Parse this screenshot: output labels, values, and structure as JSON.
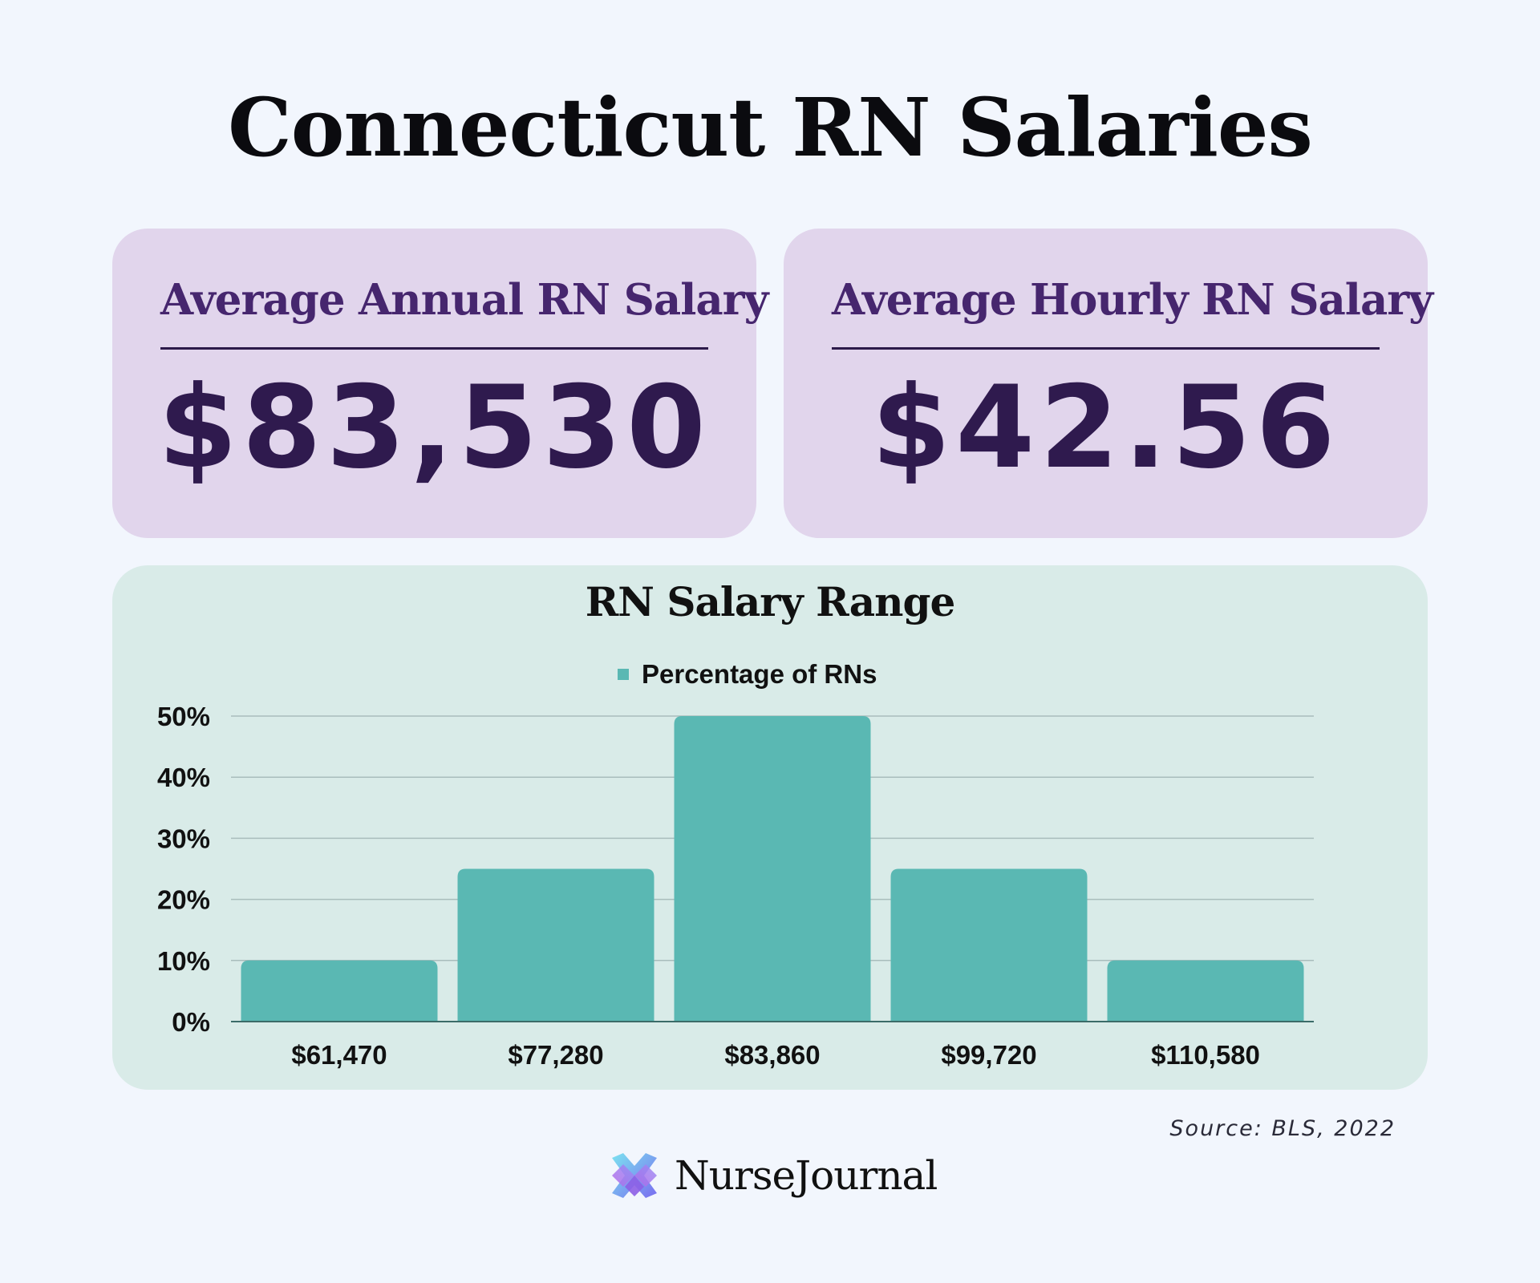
{
  "page": {
    "title": "Connecticut RN Salaries",
    "source": "Source: BLS, 2022",
    "brand_name": "NurseJournal"
  },
  "cards": {
    "annual": {
      "label": "Average Annual RN Salary",
      "value": "$83,530"
    },
    "hourly": {
      "label": "Average Hourly RN Salary",
      "value": "$42.56"
    }
  },
  "colors": {
    "background": "#f2f6fd",
    "card_purple": "#e1d5ec",
    "card_green": "#d9ebe8",
    "bar": "#5ab8b3",
    "text_purple": "#2f1a4e"
  },
  "icons": {
    "logo": "nursejournal-logo-icon"
  },
  "chart_data": {
    "type": "bar",
    "title": "RN Salary Range",
    "categories": [
      "$61,470",
      "$77,280",
      "$83,860",
      "$99,720",
      "$110,580"
    ],
    "series": [
      {
        "name": "Percentage of RNs",
        "values": [
          10,
          25,
          50,
          25,
          10
        ]
      }
    ],
    "y_ticks": [
      "0%",
      "10%",
      "20%",
      "30%",
      "40%",
      "50%"
    ],
    "ylim": [
      0,
      50
    ],
    "grid": true,
    "legend": "top-center"
  }
}
